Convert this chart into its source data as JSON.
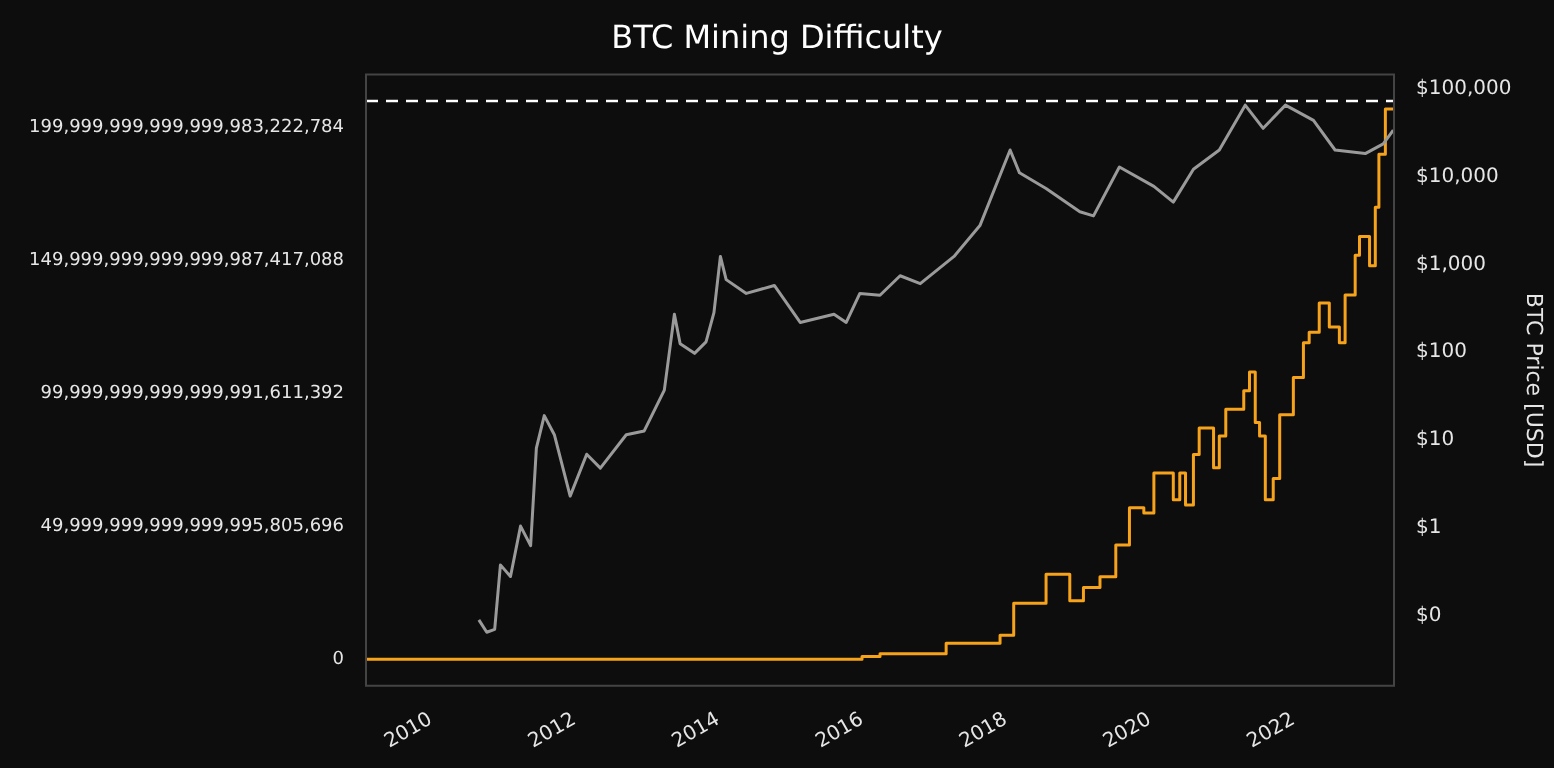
{
  "chart_data": {
    "type": "line",
    "title": "BTC Mining Difficulty",
    "y2label": "BTC Price [USD]",
    "xlim": [
      2009.1,
      2023.4
    ],
    "xticks": [
      2010,
      2012,
      2014,
      2016,
      2018,
      2020,
      2022
    ],
    "ylim": [
      -1e+22,
      2.2e+23
    ],
    "yticks": [
      0,
      {
        "value": 49999999999999995805696,
        "label": "49,999,999,999,999,995,805,696"
      },
      {
        "value": 99999999999999991611392,
        "label": "99,999,999,999,999,991,611,392"
      },
      {
        "value": 149999999999999987417088,
        "label": "149,999,999,999,999,987,417,088"
      },
      {
        "value": 199999999999999983222784,
        "label": "199,999,999,999,999,983,222,784"
      }
    ],
    "y2lim": [
      0.016,
      145000
    ],
    "y2ticks": [
      {
        "value": 0.1,
        "label": "$0"
      },
      {
        "value": 1,
        "label": "$1"
      },
      {
        "value": 10,
        "label": "$10"
      },
      {
        "value": 100,
        "label": "$100"
      },
      {
        "value": 1000,
        "label": "$1,000"
      },
      {
        "value": 10000,
        "label": "$10,000"
      },
      {
        "value": 100000,
        "label": "$100,000"
      }
    ],
    "log": "y2",
    "grid": false,
    "legend": false,
    "marker": "none",
    "line_style": "solid",
    "ref_lines": [
      {
        "axis": "y",
        "value": 2.1e+23,
        "color": "#ffffff",
        "line_style": "dashed"
      }
    ],
    "series": [
      {
        "axis": "y2",
        "color": "#9a9a9a",
        "x": [
          2010.67,
          2010.78,
          2010.89,
          2010.97,
          2011.11,
          2011.25,
          2011.39,
          2011.47,
          2011.58,
          2011.72,
          2011.94,
          2012.17,
          2012.36,
          2012.72,
          2012.97,
          2013.25,
          2013.39,
          2013.47,
          2013.67,
          2013.83,
          2013.94,
          2014.03,
          2014.11,
          2014.39,
          2014.78,
          2015.14,
          2015.61,
          2015.78,
          2015.97,
          2016.25,
          2016.53,
          2016.81,
          2017.28,
          2017.64,
          2018.06,
          2018.19,
          2018.56,
          2019.03,
          2019.22,
          2019.58,
          2020.06,
          2020.33,
          2020.61,
          2020.97,
          2021.33,
          2021.58,
          2021.89,
          2022.28,
          2022.58,
          2023.0,
          2023.25,
          2023.39
        ],
        "values": [
          0.09,
          0.065,
          0.07,
          0.38,
          0.28,
          1.05,
          0.63,
          8.1,
          19,
          11.5,
          2.3,
          6.9,
          4.8,
          11.5,
          12.7,
          37,
          270,
          125,
          97,
          131,
          282,
          1230,
          670,
          467,
          575,
          218,
          270,
          218,
          467,
          445,
          741,
          603,
          1230,
          2760,
          20000,
          11000,
          7300,
          3960,
          3560,
          12800,
          7700,
          5100,
          12100,
          20000,
          64800,
          35300,
          64800,
          43500,
          20000,
          18200,
          23500,
          33600
        ]
      },
      {
        "type": "step",
        "axis": "y",
        "color": "#f7a21b",
        "x": [
          2009.1,
          2016.0,
          2016.25,
          2017.17,
          2017.92,
          2018.11,
          2018.56,
          2018.89,
          2019.08,
          2019.31,
          2019.53,
          2019.72,
          2019.92,
          2020.06,
          2020.33,
          2020.42,
          2020.5,
          2020.61,
          2020.69,
          2020.89,
          2020.97,
          2021.06,
          2021.31,
          2021.39,
          2021.47,
          2021.53,
          2021.61,
          2021.72,
          2021.81,
          2022.0,
          2022.14,
          2022.22,
          2022.36,
          2022.5,
          2022.64,
          2022.72,
          2022.86,
          2022.92,
          2023.06,
          2023.14,
          2023.19,
          2023.28,
          2023.39
        ],
        "values": [
          0,
          0,
          1e+21,
          2e+21,
          6e+21,
          9e+21,
          2.1e+22,
          3.2e+22,
          2.2e+22,
          2.7e+22,
          3.1e+22,
          4.3e+22,
          5.7e+22,
          5.5e+22,
          7e+22,
          6e+22,
          7e+22,
          5.8e+22,
          7.7e+22,
          8.7e+22,
          7.2e+22,
          8.4e+22,
          9.4e+22,
          1.01e+23,
          1.08e+23,
          8.9e+22,
          8.4e+22,
          6e+22,
          6.8e+22,
          9.2e+22,
          1.06e+23,
          1.19e+23,
          1.23e+23,
          1.34e+23,
          1.25e+23,
          1.19e+23,
          1.37e+23,
          1.52e+23,
          1.59e+23,
          1.48e+23,
          1.7e+23,
          1.9e+23,
          2.07e+23
        ]
      }
    ]
  }
}
